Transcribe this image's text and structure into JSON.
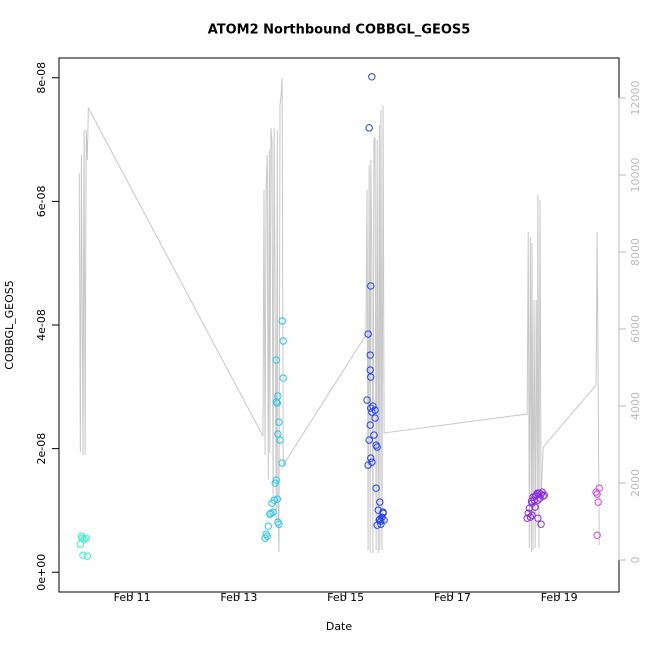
{
  "chart_data": {
    "type": "scatter",
    "title": "ATOM2 Northbound COBBGL_GEOS5",
    "x_label": "Date",
    "y_label": "COBBGL_GEOS5",
    "xlim": [
      9.63,
      20.12
    ],
    "xticks": [
      {
        "value": 11,
        "label": "Feb 11"
      },
      {
        "value": 13,
        "label": "Feb 13"
      },
      {
        "value": 15,
        "label": "Feb 15"
      },
      {
        "value": 17,
        "label": "Feb 17"
      },
      {
        "value": 19,
        "label": "Feb 19"
      }
    ],
    "ylim": [
      -3.2e-09,
      8.32e-08
    ],
    "yticks": [
      {
        "value": 0,
        "label": "0e+00"
      },
      {
        "value": 2e-08,
        "label": "2e-08"
      },
      {
        "value": 4e-08,
        "label": "4e-08"
      },
      {
        "value": 6e-08,
        "label": "6e-08"
      },
      {
        "value": 8e-08,
        "label": "8e-08"
      }
    ],
    "y2lim": [
      -831,
      13039
    ],
    "y2ticks": [
      0,
      2000,
      4000,
      6000,
      8000,
      10000,
      12000
    ],
    "series": [
      {
        "color": "#33f5c8",
        "x": [
          10.03,
          10.06,
          10.1,
          10.14,
          10.08,
          10.16,
          10.05
        ],
        "values": [
          4.53e-09,
          5.51e-09,
          5.34e-09,
          5.51e-09,
          2.75e-09,
          2.59e-09,
          5.83e-09
        ]
      },
      {
        "color": "#22c8f0",
        "x": [
          13.49,
          13.51,
          13.53,
          13.55,
          13.58,
          13.6,
          13.62,
          13.64,
          13.66,
          13.68,
          13.7,
          13.72,
          13.7,
          13.72,
          13.73,
          13.75,
          13.73,
          13.77,
          13.7,
          13.81,
          13.83,
          13.83,
          13.81,
          13.73,
          13.75
        ],
        "values": [
          5.51e-09,
          6.15e-09,
          5.83e-09,
          7.45e-09,
          9.39e-09,
          9.55e-09,
          1.117e-08,
          9.72e-09,
          1.166e-08,
          1.441e-08,
          1.49e-08,
          1.182e-08,
          2.753e-08,
          2.737e-08,
          2.85e-08,
          2.429e-08,
          2.235e-08,
          2.138e-08,
          3.433e-08,
          4.065e-08,
          3.741e-08,
          3.142e-08,
          1.765e-08,
          8.1e-09,
          7.77e-09
        ]
      },
      {
        "color": "#2040f0",
        "x": [
          15.4,
          15.42,
          15.44,
          15.42,
          15.44,
          15.47,
          15.46,
          15.49,
          15.46,
          15.47,
          15.51,
          15.49,
          15.47,
          15.53,
          15.55,
          15.57,
          15.59,
          15.57,
          15.59,
          15.61,
          15.63,
          15.64,
          15.66,
          15.68,
          15.7,
          15.72,
          15.64,
          15.66,
          15.7,
          15.47,
          15.49,
          15.55,
          15.46
        ],
        "values": [
          2.785e-08,
          1.733e-08,
          2.138e-08,
          3.854e-08,
          7.19e-08,
          4.632e-08,
          2.381e-08,
          8.016e-08,
          3.271e-08,
          3.158e-08,
          2.688e-08,
          1.781e-08,
          1.846e-08,
          2.219e-08,
          2.623e-08,
          2.057e-08,
          2.024e-08,
          1.36e-08,
          7.61e-09,
          1.004e-08,
          8.42e-09,
          1.134e-08,
          8.26e-09,
          8.91e-09,
          9.72e-09,
          8.42e-09,
          8.58e-09,
          7.77e-09,
          9.55e-09,
          2.656e-08,
          2.591e-08,
          2.494e-08,
          3.514e-08
        ]
      },
      {
        "color": "#8a2be2",
        "x": [
          18.4,
          18.42,
          18.44,
          18.46,
          18.48,
          18.49,
          18.51,
          18.53,
          18.55,
          18.57,
          18.59,
          18.6,
          18.62,
          18.64,
          18.66,
          18.68,
          18.7,
          18.72,
          18.6,
          18.66,
          18.49,
          18.55
        ],
        "values": [
          8.74e-09,
          9.55e-09,
          1.036e-08,
          8.91e-09,
          1.15e-08,
          1.117e-08,
          1.215e-08,
          1.166e-08,
          1.231e-08,
          1.247e-08,
          1.279e-08,
          1.166e-08,
          1.279e-08,
          1.198e-08,
          1.263e-08,
          1.296e-08,
          1.231e-08,
          1.247e-08,
          8.74e-09,
          7.77e-09,
          9.23e-09,
          1.053e-08
        ]
      },
      {
        "color": "#e040e0",
        "x": [
          19.71,
          19.73,
          19.69,
          19.75,
          19.71
        ],
        "values": [
          5.99e-09,
          1.134e-08,
          1.296e-08,
          1.36e-08,
          1.263e-08
        ]
      },
      {
        "color": "#c8c8c8",
        "axis": "y2",
        "line": true,
        "x": [
          10.01,
          10.03,
          10.05,
          10.08,
          10.1,
          10.12,
          10.14,
          10.16,
          10.18,
          13.45,
          13.47,
          13.49,
          13.51,
          13.53,
          13.55,
          13.57,
          13.58,
          13.6,
          13.62,
          13.64,
          13.66,
          13.7,
          13.72,
          13.73,
          13.75,
          13.77,
          13.79,
          13.81,
          13.83,
          15.38,
          15.4,
          15.42,
          15.44,
          15.46,
          15.47,
          15.49,
          15.51,
          15.53,
          15.55,
          15.57,
          15.59,
          15.61,
          15.63,
          15.64,
          15.66,
          15.68,
          15.7,
          15.72,
          18.4,
          18.42,
          18.44,
          18.46,
          18.48,
          18.49,
          18.51,
          18.53,
          18.55,
          18.57,
          18.59,
          18.6,
          18.62,
          18.64,
          18.66,
          18.7,
          19.69,
          19.71,
          19.75
        ],
        "values": [
          10050,
          2805,
          10519,
          2727,
          11169,
          2727,
          11169,
          10390,
          11740,
          3221,
          9610,
          2727,
          9740,
          10519,
          2078,
          10649,
          2779,
          11221,
          10909,
          1558,
          11221,
          1039,
          11169,
          1558,
          208,
          11818,
          12078,
          12519,
          2468,
          5844,
          9610,
          260,
          10260,
          182,
          10390,
          8052,
          182,
          10909,
          10987,
          260,
          10909,
          182,
          11299,
          260,
          11688,
          260,
          11818,
          3299,
          3792,
          8519,
          312,
          8390,
          208,
          8234,
          260,
          6753,
          312,
          6753,
          1299,
          9481,
          312,
          9351,
          1558,
          2935,
          4545,
          8519,
          390
        ]
      }
    ]
  }
}
